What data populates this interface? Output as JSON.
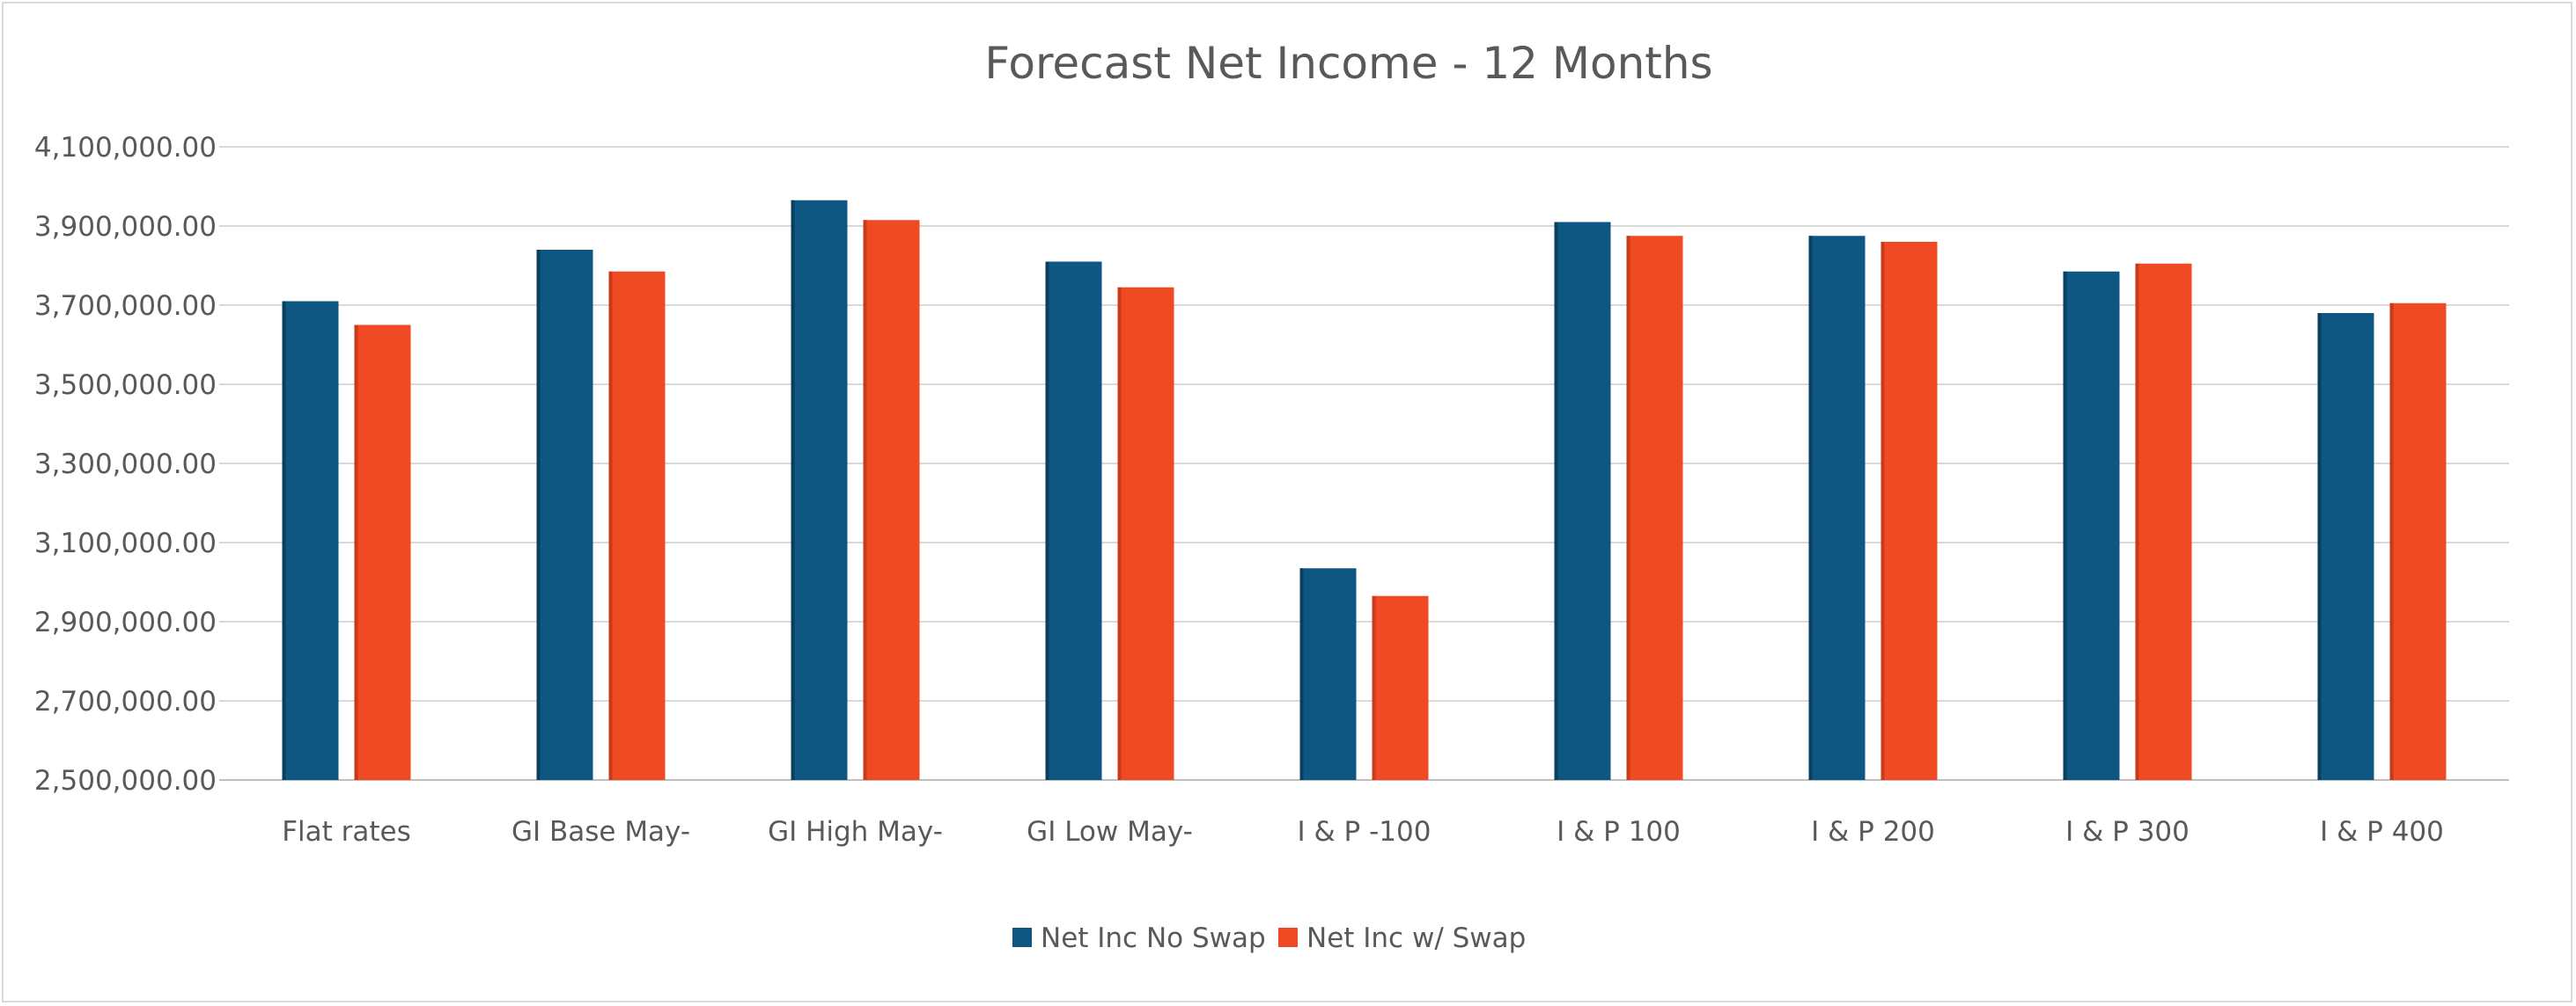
{
  "chart_data": {
    "type": "bar",
    "title": "Forecast Net Income - 12 Months",
    "xlabel": "",
    "ylabel": "",
    "categories": [
      "Flat rates",
      "GI Base May-",
      "GI High May-",
      "GI Low May-",
      "I & P -100",
      "I & P 100",
      "I & P 200",
      "I & P 300",
      "I & P 400"
    ],
    "series": [
      {
        "name": "Net Inc No Swap",
        "color": "#0e5782",
        "values": [
          3710000,
          3840000,
          3965000,
          3810000,
          3035000,
          3910000,
          3875000,
          3785000,
          3680000
        ]
      },
      {
        "name": "Net Inc w/ Swap",
        "color": "#ef4a23",
        "values": [
          3650000,
          3785000,
          3915000,
          3745000,
          2965000,
          3875000,
          3860000,
          3805000,
          3705000
        ]
      }
    ],
    "ylim": [
      2500000,
      4100000
    ],
    "yticks": [
      {
        "value": 2500000,
        "label": "2,500,000.00"
      },
      {
        "value": 2700000,
        "label": "2,700,000.00"
      },
      {
        "value": 2900000,
        "label": "2,900,000.00"
      },
      {
        "value": 3100000,
        "label": "3,100,000.00"
      },
      {
        "value": 3300000,
        "label": "3,300,000.00"
      },
      {
        "value": 3500000,
        "label": "3,500,000.00"
      },
      {
        "value": 3700000,
        "label": "3,700,000.00"
      },
      {
        "value": 3900000,
        "label": "3,900,000.00"
      },
      {
        "value": 4100000,
        "label": "4,100,000.00"
      }
    ],
    "grid": true,
    "gridColor": "#d9d9d9",
    "legend": "bottom"
  }
}
